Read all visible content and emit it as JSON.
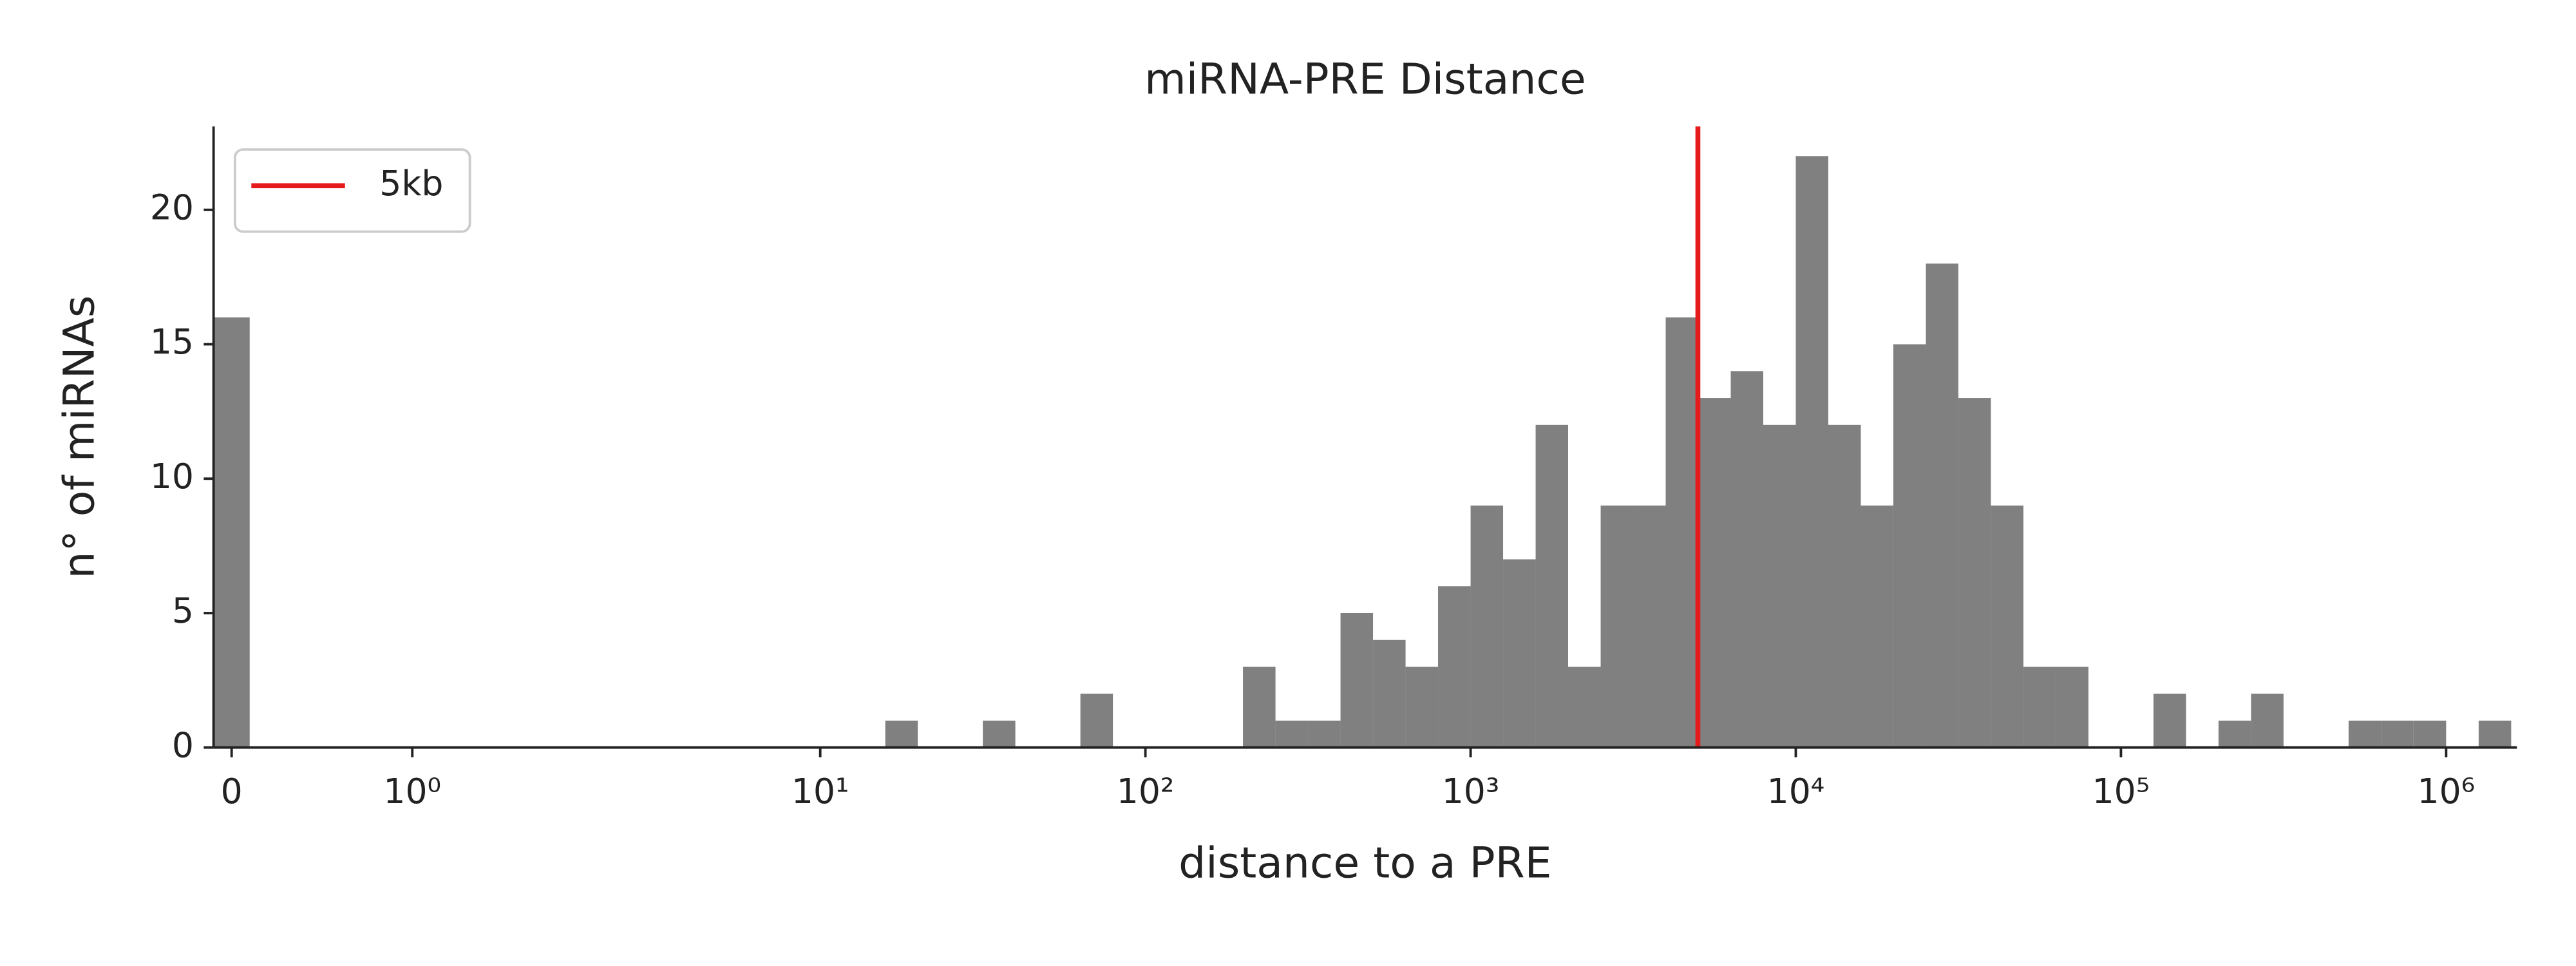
{
  "chart_data": {
    "type": "histogram",
    "title": "miRNA-PRE Distance",
    "x_label": "distance to a PRE",
    "y_label": "n° of miRNAs",
    "xscale": "symlog",
    "linthresh": 2,
    "linscale": 1,
    "bins": [
      -0.1,
      0.1,
      15.85,
      19.95,
      25.12,
      31.62,
      39.81,
      50.12,
      63.1,
      79.43,
      100,
      125.9,
      158.5,
      199.5,
      251.2,
      316.2,
      398.1,
      501.2,
      631,
      794.3,
      1000,
      1259,
      1585,
      1995,
      2512,
      3162,
      3981,
      5012,
      6310,
      7943,
      10000,
      12590,
      15850,
      19950,
      25120,
      31620,
      39810,
      50120,
      63100,
      79430,
      100000,
      125900,
      158500,
      199500,
      251200,
      316200,
      398100,
      501200,
      631000,
      794300,
      1000000,
      1259000,
      1585000
    ],
    "values": [
      16,
      0,
      1,
      0,
      0,
      1,
      0,
      0,
      2,
      0,
      0,
      0,
      0,
      3,
      1,
      1,
      5,
      4,
      3,
      6,
      9,
      7,
      12,
      3,
      9,
      9,
      16,
      13,
      14,
      12,
      22,
      12,
      9,
      15,
      18,
      13,
      9,
      3,
      3,
      0,
      0,
      2,
      0,
      1,
      2,
      0,
      0,
      1,
      1,
      1,
      0,
      1
    ],
    "color": "#808080",
    "xlim": [
      -0.1,
      1650000
    ],
    "xticks": [
      0,
      {
        "value": 1,
        "label": "10⁰"
      },
      {
        "value": 10,
        "label": "10¹"
      },
      {
        "value": 100,
        "label": "10²"
      },
      {
        "value": 1000,
        "label": "10³"
      },
      {
        "value": 10000,
        "label": "10⁴"
      },
      {
        "value": 100000,
        "label": "10⁵"
      },
      {
        "value": 1000000,
        "label": "10⁶"
      }
    ],
    "ylim": [
      0,
      23.1
    ],
    "yticks": [
      0,
      5,
      10,
      15,
      20
    ],
    "vlines": [
      {
        "x": 5000,
        "label": "5kb",
        "color": "#e41a1c"
      }
    ],
    "legend": "upper left"
  }
}
